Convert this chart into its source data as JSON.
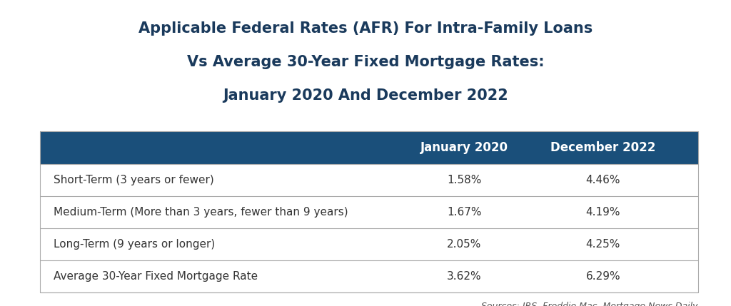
{
  "title_line1": "Applicable Federal Rates (AFR) For Intra-Family Loans",
  "title_line2": "Vs Average 30-Year Fixed Mortgage Rates:",
  "title_line3": "January 2020 And December 2022",
  "col_headers": [
    "January 2020",
    "December 2022"
  ],
  "rows": [
    {
      "label": "Short-Term (3 years or fewer)",
      "jan2020": "1.58%",
      "dec2022": "4.46%"
    },
    {
      "label": "Medium-Term (More than 3 years, fewer than 9 years)",
      "jan2020": "1.67%",
      "dec2022": "4.19%"
    },
    {
      "label": "Long-Term (9 years or longer)",
      "jan2020": "2.05%",
      "dec2022": "4.25%"
    },
    {
      "label": "Average 30-Year Fixed Mortgage Rate",
      "jan2020": "3.62%",
      "dec2022": "6.29%"
    }
  ],
  "header_bg_color": "#1a4f7a",
  "header_text_color": "#ffffff",
  "row_text_color": "#333333",
  "divider_color": "#aaaaaa",
  "background_color": "#ffffff",
  "source_text": "Sources: IRS, Freddie Mac, Mortgage News Daily",
  "title_color": "#1a3a5c",
  "title_fontsize": 15,
  "header_fontsize": 12,
  "row_fontsize": 11,
  "source_fontsize": 9
}
